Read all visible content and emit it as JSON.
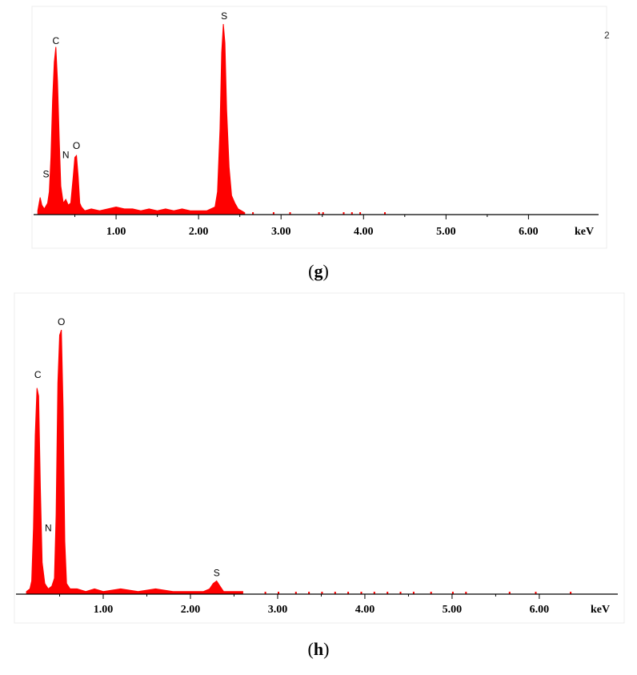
{
  "chart_data": [
    {
      "type": "area",
      "panel": "g",
      "xlabel": "keV",
      "ylabel": "",
      "xlim": [
        0.0,
        6.85
      ],
      "ylim": [
        0,
        100
      ],
      "grid": false,
      "x_ticks": [
        1.0,
        2.0,
        3.0,
        4.0,
        5.0,
        6.0
      ],
      "x_tick_labels": [
        "1.00",
        "2.00",
        "3.00",
        "4.00",
        "5.00",
        "6.00"
      ],
      "peak_labels": [
        {
          "label": "C",
          "x": 0.27,
          "y": 87
        },
        {
          "label": "S",
          "x": 2.31,
          "y": 100
        },
        {
          "label": "O",
          "x": 0.52,
          "y": 32
        },
        {
          "label": "N",
          "x": 0.39,
          "y": 27
        },
        {
          "label": "S",
          "x": 0.15,
          "y": 17
        }
      ],
      "spectrum": [
        [
          0.05,
          2
        ],
        [
          0.08,
          9
        ],
        [
          0.1,
          5
        ],
        [
          0.13,
          3
        ],
        [
          0.17,
          6
        ],
        [
          0.19,
          12
        ],
        [
          0.21,
          30
        ],
        [
          0.23,
          60
        ],
        [
          0.25,
          80
        ],
        [
          0.27,
          88
        ],
        [
          0.29,
          70
        ],
        [
          0.31,
          40
        ],
        [
          0.33,
          15
        ],
        [
          0.36,
          6
        ],
        [
          0.39,
          8
        ],
        [
          0.42,
          5
        ],
        [
          0.45,
          6
        ],
        [
          0.48,
          20
        ],
        [
          0.5,
          30
        ],
        [
          0.52,
          31
        ],
        [
          0.54,
          20
        ],
        [
          0.56,
          6
        ],
        [
          0.58,
          4
        ],
        [
          0.62,
          2
        ],
        [
          0.7,
          3
        ],
        [
          0.8,
          2
        ],
        [
          0.9,
          3
        ],
        [
          1.0,
          4
        ],
        [
          1.1,
          3
        ],
        [
          1.2,
          3
        ],
        [
          1.3,
          2
        ],
        [
          1.4,
          3
        ],
        [
          1.5,
          2
        ],
        [
          1.6,
          3
        ],
        [
          1.7,
          2
        ],
        [
          1.8,
          3
        ],
        [
          1.9,
          2
        ],
        [
          2.0,
          2
        ],
        [
          2.1,
          2
        ],
        [
          2.2,
          4
        ],
        [
          2.23,
          12
        ],
        [
          2.26,
          45
        ],
        [
          2.28,
          85
        ],
        [
          2.3,
          100
        ],
        [
          2.32,
          90
        ],
        [
          2.34,
          55
        ],
        [
          2.37,
          25
        ],
        [
          2.4,
          10
        ],
        [
          2.44,
          6
        ],
        [
          2.48,
          3
        ],
        [
          2.52,
          2
        ],
        [
          2.56,
          1
        ]
      ],
      "scatter_dots": [
        2.65,
        2.9,
        3.1,
        3.45,
        3.5,
        3.75,
        3.85,
        3.95,
        4.25
      ],
      "stray_mark": "2"
    },
    {
      "type": "area",
      "panel": "h",
      "xlabel": "keV",
      "ylabel": "",
      "xlim": [
        0.0,
        6.9
      ],
      "ylim": [
        0,
        100
      ],
      "grid": false,
      "x_ticks": [
        1.0,
        2.0,
        3.0,
        4.0,
        5.0,
        6.0
      ],
      "x_tick_labels": [
        "1.00",
        "2.00",
        "3.00",
        "4.00",
        "5.00",
        "6.00"
      ],
      "peak_labels": [
        {
          "label": "O",
          "x": 0.52,
          "y": 100
        },
        {
          "label": "C",
          "x": 0.25,
          "y": 80
        },
        {
          "label": "N",
          "x": 0.37,
          "y": 22
        },
        {
          "label": "S",
          "x": 2.3,
          "y": 5
        }
      ],
      "spectrum": [
        [
          0.12,
          1
        ],
        [
          0.16,
          2
        ],
        [
          0.18,
          5
        ],
        [
          0.2,
          25
        ],
        [
          0.22,
          60
        ],
        [
          0.24,
          78
        ],
        [
          0.26,
          75
        ],
        [
          0.28,
          40
        ],
        [
          0.3,
          12
        ],
        [
          0.33,
          4
        ],
        [
          0.37,
          2
        ],
        [
          0.41,
          3
        ],
        [
          0.44,
          6
        ],
        [
          0.46,
          30
        ],
        [
          0.48,
          80
        ],
        [
          0.5,
          98
        ],
        [
          0.52,
          100
        ],
        [
          0.54,
          70
        ],
        [
          0.56,
          20
        ],
        [
          0.58,
          4
        ],
        [
          0.62,
          2
        ],
        [
          0.7,
          2
        ],
        [
          0.8,
          1
        ],
        [
          0.9,
          2
        ],
        [
          1.0,
          1
        ],
        [
          1.2,
          2
        ],
        [
          1.4,
          1
        ],
        [
          1.6,
          2
        ],
        [
          1.8,
          1
        ],
        [
          2.0,
          1
        ],
        [
          2.15,
          1
        ],
        [
          2.22,
          2
        ],
        [
          2.26,
          4
        ],
        [
          2.3,
          5
        ],
        [
          2.34,
          3
        ],
        [
          2.38,
          1
        ],
        [
          2.45,
          1
        ],
        [
          2.6,
          1
        ]
      ],
      "scatter_dots": [
        2.85,
        3.0,
        3.2,
        3.35,
        3.5,
        3.65,
        3.8,
        3.95,
        4.1,
        4.25,
        4.4,
        4.55,
        4.75,
        5.0,
        5.15,
        5.65,
        5.95,
        6.35
      ]
    }
  ],
  "captions": {
    "g": "g",
    "h": "h"
  },
  "colors": {
    "spectrum": "#ff0000",
    "axis": "#000000"
  }
}
